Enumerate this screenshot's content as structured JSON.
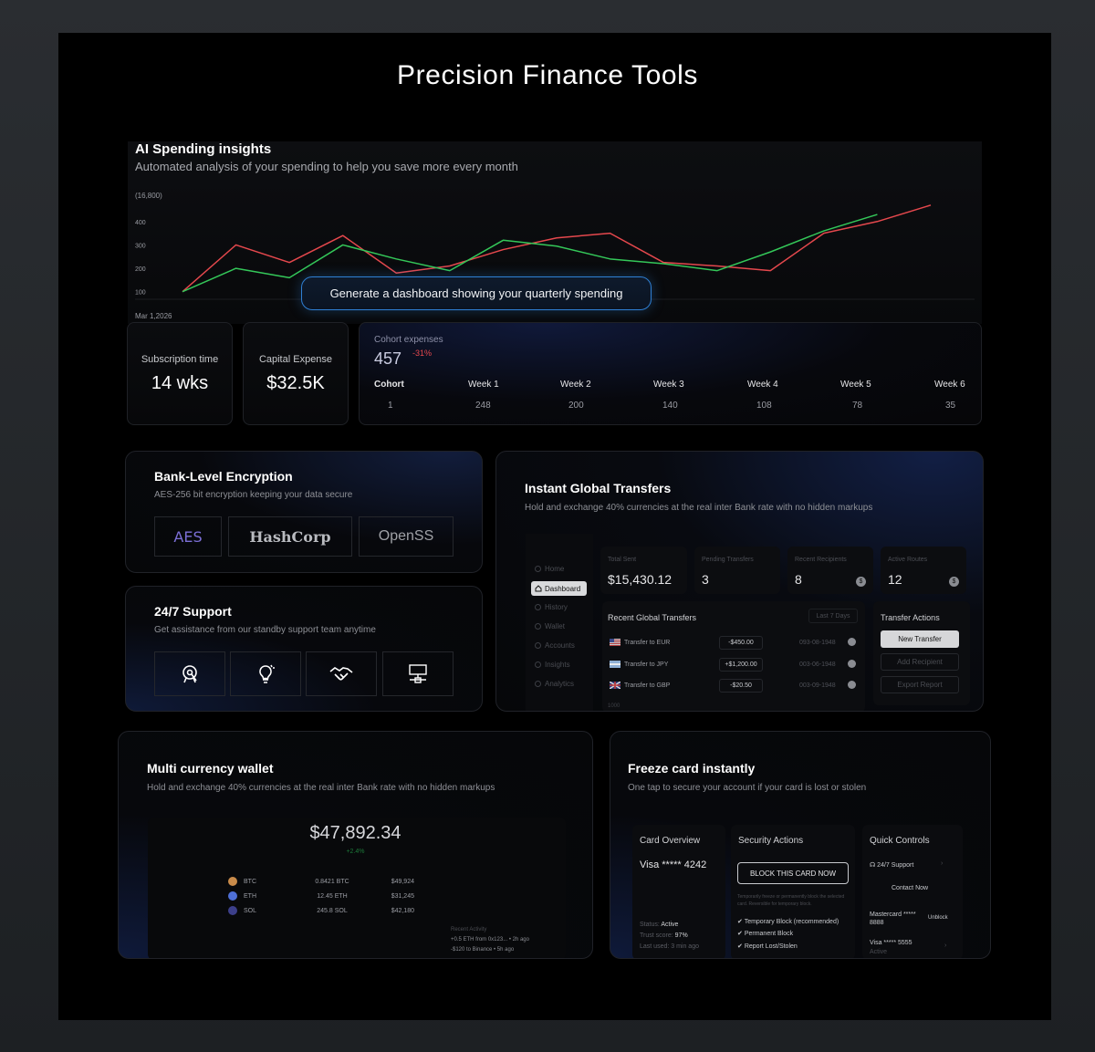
{
  "page": {
    "title": "Precision Finance Tools"
  },
  "ai": {
    "title": "AI Spending insights",
    "subtitle": "Automated analysis of your spending to help you save more every month",
    "prompt_pill": "Generate a dashboard showing your quarterly spending"
  },
  "chart_data": {
    "type": "line",
    "title": "",
    "xlabel": "Mar 1,2026",
    "ylabel": "(16,800)",
    "y_ticks": [
      "400",
      "300",
      "200",
      "100"
    ],
    "y_tick_values": [
      400,
      300,
      200,
      100
    ],
    "ylim": [
      60,
      520
    ],
    "x": [
      0,
      1,
      2,
      3,
      4,
      5,
      6,
      7,
      8,
      9,
      10,
      11,
      12,
      13,
      14
    ],
    "series": [
      {
        "color": "#e5484d",
        "values": [
          100,
          300,
          225,
          340,
          180,
          210,
          280,
          330,
          350,
          225,
          210,
          190,
          350,
          400,
          470
        ]
      },
      {
        "color": "#34c759",
        "values": [
          100,
          200,
          160,
          300,
          240,
          190,
          320,
          295,
          240,
          220,
          190,
          270,
          360,
          430,
          null
        ]
      }
    ],
    "grid": false
  },
  "stats": {
    "subscription_label": "Subscription time",
    "subscription_value": "14 wks",
    "capital_label": "Capital Expense",
    "capital_value": "$32.5K"
  },
  "cohort": {
    "label": "Cohort expenses",
    "value": "457",
    "change": "-31%",
    "headers": [
      "Cohort",
      "Week 1",
      "Week 2",
      "Week 3",
      "Week 4",
      "Week 5",
      "Week 6"
    ],
    "values": [
      "1",
      "248",
      "200",
      "140",
      "108",
      "78",
      "35"
    ]
  },
  "encryption": {
    "title": "Bank-Level Encryption",
    "subtitle": "AES-256 bit encryption keeping your data secure",
    "logos": [
      "AES",
      "HashCorp",
      "OpenSS"
    ]
  },
  "support": {
    "title": "24/7 Support",
    "subtitle": "Get assistance from our standby support team anytime",
    "icons": [
      "support-agent-icon",
      "lightbulb-icon",
      "handshake-icon",
      "network-icon"
    ]
  },
  "transfers": {
    "title": "Instant Global Transfers",
    "subtitle": "Hold and exchange 40% currencies at the real inter Bank rate with no hidden markups",
    "nav": [
      "Home",
      "Dashboard",
      "History",
      "Wallet",
      "Accounts",
      "Insights",
      "Analytics"
    ],
    "stats": [
      {
        "label": "Total Sent",
        "value": "$15,430.12"
      },
      {
        "label": "Pending Transfers",
        "value": "3"
      },
      {
        "label": "Recent Recipients",
        "value": "8"
      },
      {
        "label": "Active Routes",
        "value": "12"
      }
    ],
    "recent_title": "Recent Global Transfers",
    "recent_filter": "Last 7 Days",
    "rows": [
      {
        "name": "Transfer to EUR",
        "amount": "-$450.00",
        "date": "093-08-1948"
      },
      {
        "name": "Transfer to JPY",
        "amount": "+$1,200.00",
        "date": "003-06-1948"
      },
      {
        "name": "Transfer to GBP",
        "amount": "-$20.50",
        "date": "003-09-1948"
      }
    ],
    "recent_footer": "1000",
    "actions_title": "Transfer Actions",
    "actions": [
      "New Transfer",
      "Add Recipient",
      "Export Report"
    ]
  },
  "wallet": {
    "title": "Multi currency wallet",
    "subtitle": "Hold and exchange 40% currencies at the real inter Bank rate with no hidden markups",
    "total": "$47,892.34",
    "change": "+2.4%",
    "coins": [
      {
        "symbol": "BTC",
        "amount": "0.8421 BTC",
        "usd": "$49,924",
        "color": "#c98b4a"
      },
      {
        "symbol": "ETH",
        "amount": "12.45 ETH",
        "usd": "$31,245",
        "color": "#4e6fd6"
      },
      {
        "symbol": "SOL",
        "amount": "245.8 SOL",
        "usd": "$42,180",
        "color": "#3c3f8a"
      }
    ],
    "activity_title": "Recent Activity",
    "activity": [
      "+0.5 ETH from 0x123... • 2h ago",
      "-$120 to Binance • 5h ago"
    ]
  },
  "freeze": {
    "title": "Freeze card instantly",
    "subtitle": "One tap to secure your account if your card is lost or stolen",
    "overview_title": "Card Overview",
    "card_number": "Visa ***** 4242",
    "status_label": "Status:",
    "status": "Active",
    "trust_label": "Trust score:",
    "trust": "97%",
    "last_used": "Last used: 3 min ago",
    "security_title": "Security Actions",
    "block_button": "BLOCK THIS CARD NOW",
    "block_note": "Temporarily freeze or permanently block the selected card. Reversible for temporary block.",
    "options": [
      "Temporary Block (recommended)",
      "Permanent Block",
      "Report Lost/Stolen"
    ],
    "quick_title": "Quick Controls",
    "support_btn": "24/7 Support",
    "contact_btn": "Contact Now",
    "mastercard": "Mastercard ***** 8888",
    "unblock": "Unblock",
    "visa2": "Visa ***** 5555",
    "visa2_status": "Active"
  }
}
